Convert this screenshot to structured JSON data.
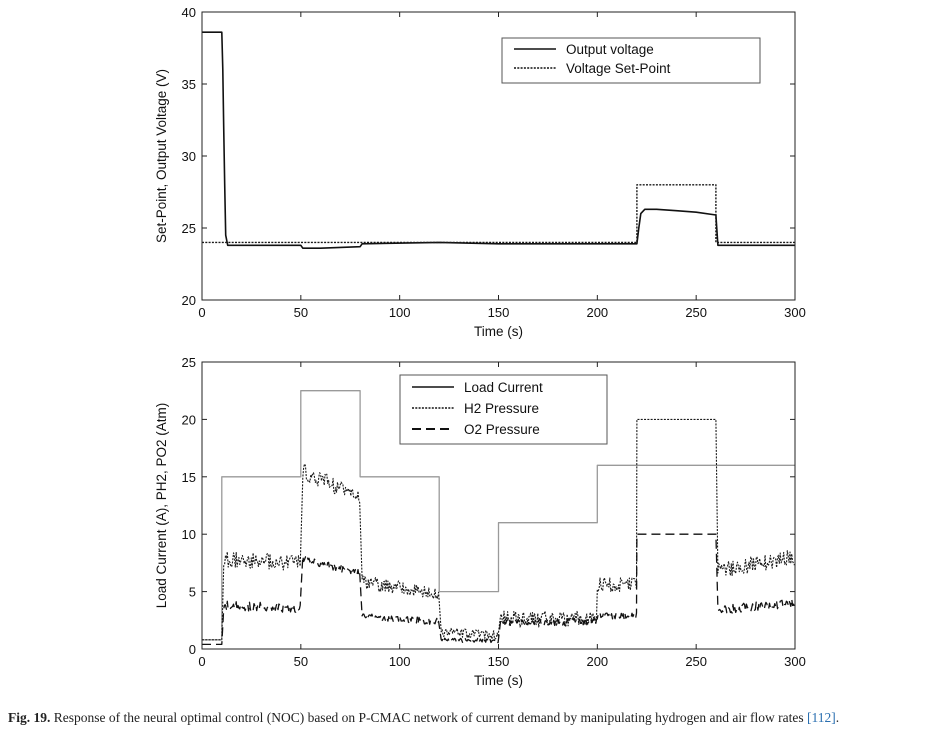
{
  "caption": {
    "label": "Fig. 19.",
    "text": "Response of the neural optimal control (NOC) based on P-CMAC network of current demand by manipulating hydrogen and air flow rates",
    "ref": "[112]",
    "end": "."
  },
  "colors": {
    "line": "#111111",
    "light_line": "#9a9a9a",
    "caption_ref": "#2a6fb0"
  },
  "chart_data": [
    {
      "type": "line",
      "xlabel": "Time (s)",
      "ylabel": "Set-Point, Output Voltage (V)",
      "xlim": [
        0,
        300
      ],
      "ylim": [
        20,
        40
      ],
      "xticks": [
        0,
        50,
        100,
        150,
        200,
        250,
        300
      ],
      "yticks": [
        20,
        25,
        30,
        35,
        40
      ],
      "legend_position": "top-right",
      "grid": false,
      "series": [
        {
          "name": "Output voltage",
          "style": "solid",
          "x": [
            0,
            10,
            10.5,
            11,
            11.5,
            12,
            13,
            50,
            51,
            60,
            80,
            81,
            120,
            150,
            200,
            220,
            221,
            222,
            224,
            230,
            240,
            250,
            260,
            261,
            300
          ],
          "y": [
            38.6,
            38.6,
            36.0,
            32.0,
            28.0,
            24.5,
            23.8,
            23.8,
            23.6,
            23.6,
            23.7,
            23.9,
            24.0,
            23.9,
            23.9,
            23.9,
            25.0,
            26.0,
            26.3,
            26.3,
            26.2,
            26.1,
            25.9,
            23.8,
            23.8
          ]
        },
        {
          "name": "Voltage Set-Point",
          "style": "dotted",
          "x": [
            0,
            220,
            220,
            260,
            260,
            300
          ],
          "y": [
            24,
            24,
            28,
            28,
            24,
            24
          ]
        }
      ]
    },
    {
      "type": "line",
      "xlabel": "Time (s)",
      "ylabel": "Load Current (A), PH2, PO2 (Atm)",
      "xlim": [
        0,
        300
      ],
      "ylim": [
        0,
        25
      ],
      "xticks": [
        0,
        50,
        100,
        150,
        200,
        250,
        300
      ],
      "yticks": [
        0,
        5,
        10,
        15,
        20,
        25
      ],
      "legend_position": "top-center",
      "grid": false,
      "series": [
        {
          "name": "Load Current",
          "style": "solid",
          "x": [
            0,
            10,
            10,
            50,
            50,
            80,
            80,
            120,
            120,
            150,
            150,
            200,
            200,
            300
          ],
          "y": [
            0.8,
            0.8,
            15,
            15,
            22.5,
            22.5,
            15,
            15,
            5,
            5,
            11,
            11,
            16,
            16
          ]
        },
        {
          "name": "H2 Pressure",
          "style": "dotted",
          "segments": [
            {
              "x": [
                0,
                10
              ],
              "y": [
                0.8,
                0.8
              ]
            },
            {
              "x": [
                11,
                50
              ],
              "y": [
                7.8,
                7.5
              ],
              "noise": 0.7
            },
            {
              "x": [
                51,
                80
              ],
              "y": [
                15.5,
                13.2
              ],
              "noise": 0.7
            },
            {
              "x": [
                81,
                120
              ],
              "y": [
                5.8,
                4.8
              ],
              "noise": 0.6
            },
            {
              "x": [
                121,
                150
              ],
              "y": [
                1.5,
                1.2
              ],
              "noise": 0.4
            },
            {
              "x": [
                151,
                200
              ],
              "y": [
                2.6,
                2.6
              ],
              "noise": 0.7
            },
            {
              "x": [
                200,
                220
              ],
              "y": [
                5.6,
                5.6
              ],
              "noise": 0.6
            },
            {
              "x": [
                220,
                260
              ],
              "y": [
                20,
                20
              ],
              "noise": 0
            },
            {
              "x": [
                261,
                300
              ],
              "y": [
                6.8,
                8.0
              ],
              "noise": 0.7
            }
          ]
        },
        {
          "name": "O2 Pressure",
          "style": "dashed",
          "segments": [
            {
              "x": [
                0,
                10
              ],
              "y": [
                0.4,
                0.4
              ]
            },
            {
              "x": [
                11,
                50
              ],
              "y": [
                3.8,
                3.5
              ],
              "noise": 0.4
            },
            {
              "x": [
                51,
                80
              ],
              "y": [
                7.8,
                6.6
              ],
              "noise": 0.3
            },
            {
              "x": [
                81,
                120
              ],
              "y": [
                2.8,
                2.4
              ],
              "noise": 0.3
            },
            {
              "x": [
                121,
                150
              ],
              "y": [
                0.8,
                0.7
              ],
              "noise": 0.2
            },
            {
              "x": [
                151,
                200
              ],
              "y": [
                2.3,
                2.4
              ],
              "noise": 0.3
            },
            {
              "x": [
                200,
                220
              ],
              "y": [
                2.9,
                2.9
              ],
              "noise": 0.3
            },
            {
              "x": [
                220,
                260
              ],
              "y": [
                10,
                10
              ],
              "noise": 0
            },
            {
              "x": [
                261,
                300
              ],
              "y": [
                3.4,
                4.0
              ],
              "noise": 0.4
            }
          ]
        }
      ]
    }
  ]
}
